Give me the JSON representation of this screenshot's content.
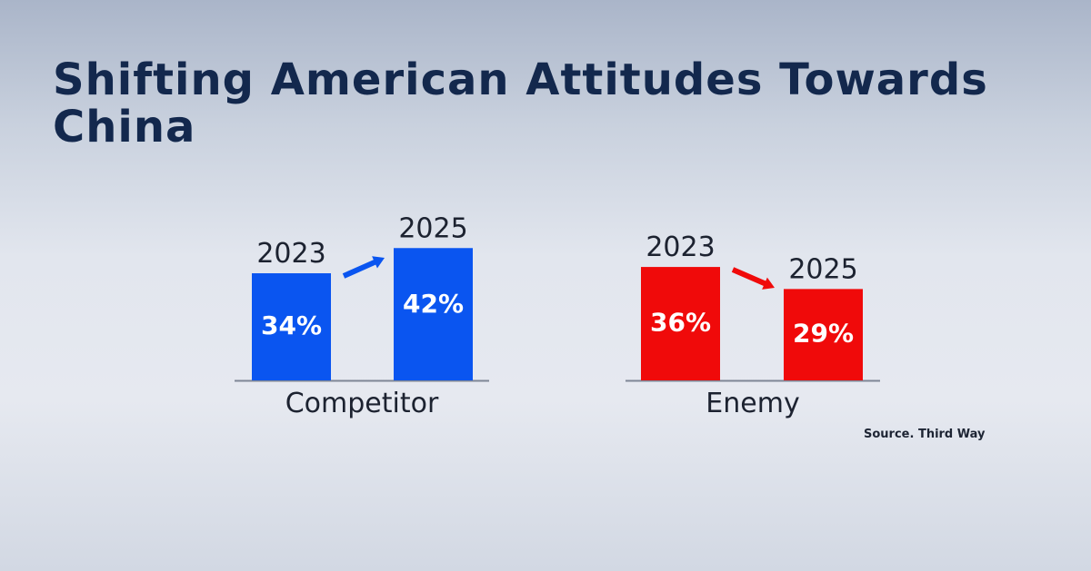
{
  "title": "Shifting American Attitudes Towards China",
  "source": "Source. Third Way",
  "chart_data": [
    {
      "type": "bar",
      "xlabel": "Competitor",
      "categories": [
        "2023",
        "2025"
      ],
      "values": [
        34,
        42
      ],
      "data_labels": [
        "34%",
        "42%"
      ],
      "color": "#0a55f0",
      "trend": "up"
    },
    {
      "type": "bar",
      "xlabel": "Enemy",
      "categories": [
        "2023",
        "2025"
      ],
      "values": [
        36,
        29
      ],
      "data_labels": [
        "36%",
        "29%"
      ],
      "color": "#f00a0a",
      "trend": "down"
    }
  ]
}
